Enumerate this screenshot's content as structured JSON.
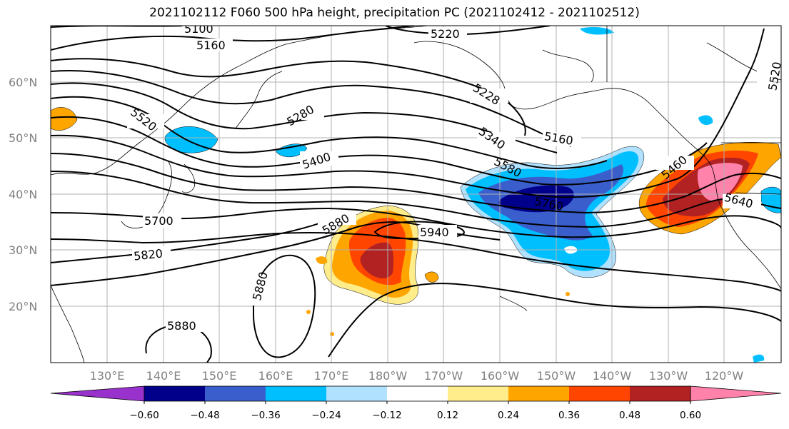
{
  "title": "2021102112 F060 500 hPa height, precipitation PC (2021102412 - 2021102512)",
  "lat_labels": [
    "60°N",
    "50°N",
    "40°N",
    "30°N",
    "20°N"
  ],
  "lon_labels": [
    "130°E",
    "140°E",
    "150°E",
    "160°E",
    "170°E",
    "180°W",
    "170°W",
    "160°W",
    "150°W",
    "140°W",
    "130°W",
    "120°W"
  ],
  "contour_labels": [
    "5100",
    "5160",
    "5220",
    "5520",
    "5280",
    "5228",
    "5160",
    "5340",
    "5400",
    "5580",
    "5460",
    "5520",
    "5640",
    "5760",
    "5700",
    "5880",
    "5940",
    "5820",
    "5880",
    "5880"
  ],
  "colorbar": {
    "ticks": [
      "−0.60",
      "−0.48",
      "−0.36",
      "−0.24",
      "−0.12",
      "0.12",
      "0.24",
      "0.36",
      "0.48",
      "0.60"
    ],
    "colors": [
      "#9932cc",
      "#00008b",
      "#3a5fcd",
      "#00bfff",
      "#b0e2ff",
      "#ffffff",
      "#ffec8b",
      "#ffa500",
      "#ff4500",
      "#b22222",
      "#ff82ab"
    ]
  }
}
